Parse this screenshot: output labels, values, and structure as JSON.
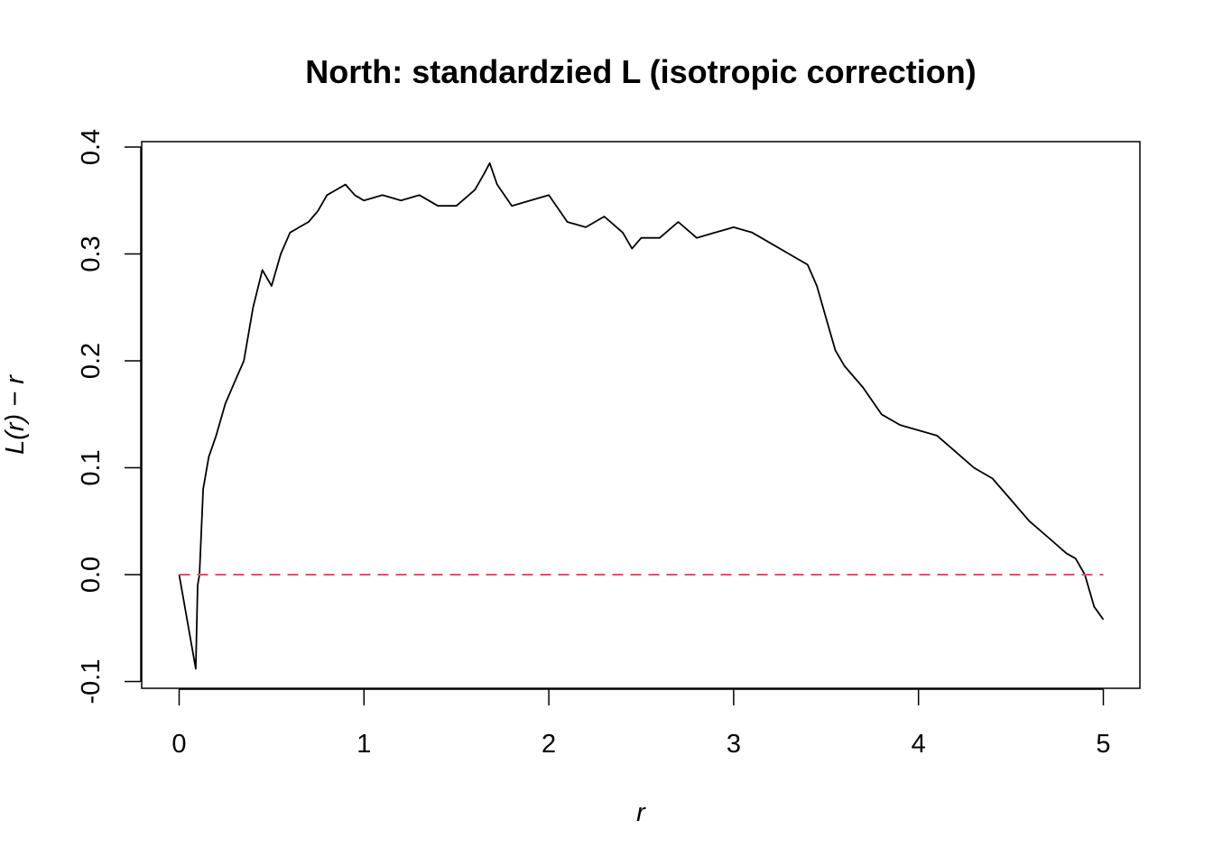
{
  "chart_data": {
    "type": "line",
    "title": "North: standardzied L (isotropic correction)",
    "xlabel": "r",
    "ylabel": "L(r) − r",
    "xlim": [
      0,
      5
    ],
    "ylim": [
      -0.1,
      0.4
    ],
    "x_ticks": [
      "0",
      "1",
      "2",
      "3",
      "4",
      "5"
    ],
    "y_ticks": [
      "-0.1",
      "0.0",
      "0.1",
      "0.2",
      "0.3",
      "0.4"
    ],
    "grid": false,
    "legend": "none",
    "colors": {
      "observed": "#000000",
      "reference": "#DF536B"
    },
    "series": [
      {
        "style": "solid",
        "x": [
          0,
          0.09,
          0.1,
          0.11,
          0.13,
          0.16,
          0.2,
          0.25,
          0.3,
          0.35,
          0.4,
          0.45,
          0.5,
          0.55,
          0.6,
          0.65,
          0.7,
          0.75,
          0.8,
          0.85,
          0.9,
          0.95,
          1.0,
          1.1,
          1.2,
          1.3,
          1.4,
          1.5,
          1.6,
          1.65,
          1.68,
          1.72,
          1.8,
          1.9,
          2.0,
          2.1,
          2.2,
          2.3,
          2.4,
          2.45,
          2.5,
          2.6,
          2.7,
          2.8,
          2.9,
          3.0,
          3.1,
          3.2,
          3.3,
          3.4,
          3.45,
          3.5,
          3.55,
          3.6,
          3.7,
          3.8,
          3.9,
          4.0,
          4.1,
          4.2,
          4.3,
          4.4,
          4.5,
          4.6,
          4.7,
          4.8,
          4.85,
          4.9,
          4.95,
          5.0
        ],
        "y": [
          0.0,
          -0.088,
          -0.01,
          0.0,
          0.08,
          0.11,
          0.13,
          0.16,
          0.18,
          0.2,
          0.25,
          0.285,
          0.27,
          0.3,
          0.32,
          0.325,
          0.33,
          0.34,
          0.355,
          0.36,
          0.365,
          0.355,
          0.35,
          0.355,
          0.35,
          0.355,
          0.345,
          0.345,
          0.36,
          0.375,
          0.385,
          0.365,
          0.345,
          0.35,
          0.355,
          0.33,
          0.325,
          0.335,
          0.32,
          0.305,
          0.315,
          0.315,
          0.33,
          0.315,
          0.32,
          0.325,
          0.32,
          0.31,
          0.3,
          0.29,
          0.27,
          0.24,
          0.21,
          0.195,
          0.175,
          0.15,
          0.14,
          0.135,
          0.13,
          0.115,
          0.1,
          0.09,
          0.07,
          0.05,
          0.035,
          0.02,
          0.015,
          0.0,
          -0.03,
          -0.042
        ]
      },
      {
        "style": "dashed",
        "x": [
          0,
          5
        ],
        "y": [
          0,
          0
        ]
      }
    ]
  }
}
